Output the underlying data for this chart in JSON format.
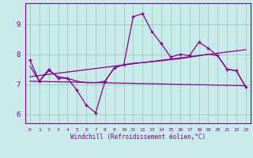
{
  "xlabel": "Windchill (Refroidissement éolien,°C)",
  "xlim": [
    -0.5,
    23.5
  ],
  "ylim": [
    5.7,
    9.7
  ],
  "yticks": [
    6,
    7,
    8,
    9
  ],
  "xticks": [
    0,
    1,
    2,
    3,
    4,
    5,
    6,
    7,
    8,
    9,
    10,
    11,
    12,
    13,
    14,
    15,
    16,
    17,
    18,
    19,
    20,
    21,
    22,
    23
  ],
  "bg_color": "#c8eaea",
  "line_color": "#880088",
  "grid_color": "#99ccbb",
  "series1_y": [
    7.8,
    7.1,
    7.5,
    7.2,
    7.2,
    6.8,
    6.3,
    6.05,
    7.1,
    7.55,
    7.65,
    9.25,
    9.35,
    8.75,
    8.35,
    7.9,
    8.0,
    7.95,
    8.4,
    8.2,
    7.95,
    7.5,
    7.45,
    6.9
  ],
  "series2_y": [
    7.6,
    7.1,
    7.45,
    7.25,
    7.2,
    7.1,
    7.05,
    7.05,
    7.1,
    7.55,
    7.65,
    7.7,
    7.72,
    7.75,
    7.78,
    7.82,
    7.85,
    7.9,
    7.95,
    8.0,
    7.95,
    7.5,
    7.45,
    6.9
  ],
  "series3_x": [
    0,
    23
  ],
  "series3_y": [
    7.25,
    8.15
  ],
  "series4_x": [
    0,
    23
  ],
  "series4_y": [
    7.1,
    6.95
  ]
}
